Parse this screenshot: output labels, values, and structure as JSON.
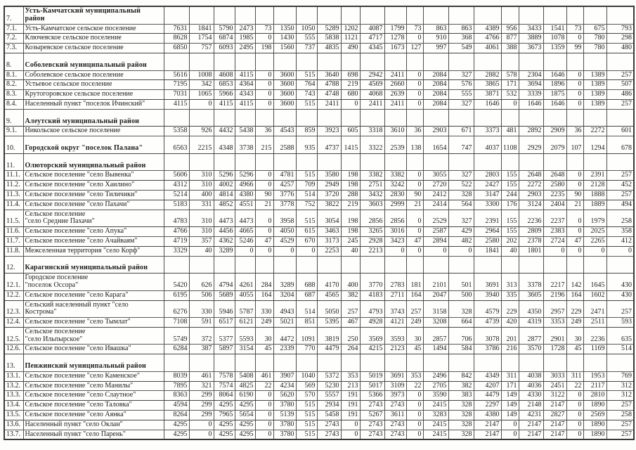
{
  "page": {
    "background": "#fdfdfb"
  },
  "table": {
    "columns": 21,
    "rows": [
      {
        "num": "7.",
        "name": "Усть-Камчатский  муниципальный\nрайон",
        "bold": true,
        "values": []
      },
      {
        "num": "7.1.",
        "name": "Усть-Камчатское сельское поселение",
        "bold": false,
        "values": [
          7631,
          1841,
          5790,
          2473,
          73,
          1350,
          1050,
          5289,
          1202,
          4087,
          1799,
          73,
          863,
          863,
          4389,
          956,
          3433,
          1541,
          73,
          675,
          793
        ]
      },
      {
        "num": "7.2.",
        "name": "Ключевское  сельское поселение",
        "bold": false,
        "values": [
          8628,
          1754,
          6874,
          1985,
          0,
          1430,
          555,
          5838,
          1121,
          4717,
          1278,
          0,
          910,
          368,
          4766,
          877,
          3889,
          1078,
          0,
          780,
          298
        ]
      },
      {
        "num": "7.3.",
        "name": "Козыревское  сельское поселение",
        "bold": false,
        "values": [
          6850,
          757,
          6093,
          2495,
          198,
          1560,
          737,
          4835,
          490,
          4345,
          1673,
          127,
          997,
          549,
          4061,
          388,
          3673,
          1359,
          99,
          780,
          480
        ]
      },
      {
        "num": "8.",
        "name": "\nСоболевский  муниципальный район",
        "bold": true,
        "values": []
      },
      {
        "num": "8.1.",
        "name": "Соболевское  сельское поселение",
        "bold": false,
        "values": [
          5616,
          1008,
          4608,
          4115,
          0,
          3600,
          515,
          3640,
          698,
          2942,
          2411,
          0,
          2084,
          327,
          2882,
          578,
          2304,
          1646,
          0,
          1389,
          257
        ]
      },
      {
        "num": "8.2.",
        "name": "Устьевое  сельское поселение",
        "bold": false,
        "values": [
          7195,
          342,
          6853,
          4364,
          0,
          3600,
          764,
          4788,
          219,
          4569,
          2660,
          0,
          2084,
          576,
          3865,
          171,
          3694,
          1896,
          0,
          1389,
          507
        ]
      },
      {
        "num": "8.3.",
        "name": "Крутогоровское  сельское поселение",
        "bold": false,
        "values": [
          7031,
          1065,
          5966,
          4343,
          0,
          3600,
          743,
          4748,
          680,
          4068,
          2639,
          0,
          2084,
          555,
          3871,
          532,
          3339,
          1875,
          0,
          1389,
          486
        ]
      },
      {
        "num": "8.4.",
        "name": "Населенный пункт \"поселок Ичинский\"",
        "bold": false,
        "values": [
          4115,
          0,
          4115,
          4115,
          0,
          3600,
          515,
          2411,
          0,
          2411,
          2411,
          0,
          2084,
          327,
          1646,
          0,
          1646,
          1646,
          0,
          1389,
          257
        ]
      },
      {
        "num": "9.",
        "name": "\nАлеутский муниципальный район",
        "bold": true,
        "values": []
      },
      {
        "num": "9.1.",
        "name": "Никольское  сельское поселение",
        "bold": false,
        "values": [
          5358,
          926,
          4432,
          5438,
          36,
          4543,
          859,
          3923,
          605,
          3318,
          3610,
          36,
          2903,
          671,
          3373,
          481,
          2892,
          2909,
          36,
          2272,
          601
        ]
      },
      {
        "num": "10.",
        "name": "\nГородской округ  \"поселок Палана\"",
        "bold": true,
        "values": [
          6563,
          2215,
          4348,
          3738,
          215,
          2588,
          935,
          4737,
          1415,
          3322,
          2539,
          138,
          1654,
          747,
          4037,
          1108,
          2929,
          2079,
          107,
          1294,
          678
        ]
      },
      {
        "num": "11.",
        "name": "\nОлюторский  муниципальный район",
        "bold": true,
        "values": []
      },
      {
        "num": "11.1.",
        "name": "Сельское поселение \"село Вывенка\"",
        "bold": false,
        "values": [
          5606,
          310,
          5296,
          5296,
          0,
          4781,
          515,
          3580,
          198,
          3382,
          3382,
          0,
          3055,
          327,
          2803,
          155,
          2648,
          2648,
          0,
          2391,
          257
        ]
      },
      {
        "num": "11.2.",
        "name": "Сельское поселение \"село Хаилино\"",
        "bold": false,
        "values": [
          4312,
          310,
          4002,
          4966,
          0,
          4257,
          709,
          2949,
          198,
          2751,
          3242,
          0,
          2720,
          522,
          2427,
          155,
          2272,
          2580,
          0,
          2128,
          452
        ]
      },
      {
        "num": "11.3.",
        "name": "Сельское поселение \"село Тиличики\"",
        "bold": false,
        "values": [
          5214,
          400,
          4814,
          4380,
          90,
          3776,
          514,
          3720,
          288,
          3432,
          2830,
          90,
          2412,
          328,
          3147,
          244,
          2903,
          2235,
          90,
          1888,
          257
        ]
      },
      {
        "num": "11.4.",
        "name": "Сельское поселение \"село Пахачи\"",
        "bold": false,
        "values": [
          5183,
          331,
          4852,
          4551,
          21,
          3778,
          752,
          3822,
          219,
          3603,
          2999,
          21,
          2414,
          564,
          3300,
          176,
          3124,
          2404,
          21,
          1889,
          494
        ]
      },
      {
        "num": "11.5.",
        "name": "Сельское поселение\n\"село Средние Пахачи\"",
        "bold": false,
        "values": [
          4783,
          310,
          4473,
          4473,
          0,
          3958,
          515,
          3054,
          198,
          2856,
          2856,
          0,
          2529,
          327,
          2391,
          155,
          2236,
          2237,
          0,
          1979,
          258
        ]
      },
      {
        "num": "11.6.",
        "name": "Сельское поселение \"село Апука\"",
        "bold": false,
        "values": [
          4766,
          310,
          4456,
          4665,
          0,
          4050,
          615,
          3463,
          198,
          3265,
          3016,
          0,
          2587,
          429,
          2964,
          155,
          2809,
          2383,
          0,
          2025,
          358
        ]
      },
      {
        "num": "11.7.",
        "name": "Сельское поселение \"село Ачайваям\"",
        "bold": false,
        "values": [
          4719,
          357,
          4362,
          5246,
          47,
          4529,
          670,
          3173,
          245,
          2928,
          3423,
          47,
          2894,
          482,
          2580,
          202,
          2378,
          2724,
          47,
          2265,
          412
        ]
      },
      {
        "num": "11.8.",
        "name": "Межселенная территория \"село Корф\"",
        "bold": false,
        "values": [
          3329,
          40,
          3289,
          0,
          0,
          0,
          0,
          2253,
          40,
          2213,
          0,
          0,
          0,
          0,
          1841,
          40,
          1801,
          0,
          0,
          0,
          0
        ]
      },
      {
        "num": "12.",
        "name": "\nКарагинский  муниципальный район",
        "bold": true,
        "values": []
      },
      {
        "num": "12.1.",
        "name": "Городское поселение\n\"поселок  Оссора\"",
        "bold": false,
        "values": [
          5420,
          626,
          4794,
          4261,
          284,
          3289,
          688,
          4170,
          400,
          3770,
          2783,
          181,
          2101,
          501,
          3691,
          313,
          3378,
          2217,
          142,
          1645,
          430
        ]
      },
      {
        "num": "12.2.",
        "name": "Сельское поселение \"село Карага\"",
        "bold": false,
        "values": [
          6195,
          506,
          5689,
          4055,
          164,
          3204,
          687,
          4565,
          382,
          4183,
          2711,
          164,
          2047,
          500,
          3940,
          335,
          3605,
          2196,
          164,
          1602,
          430
        ]
      },
      {
        "num": "12.3.",
        "name": "Сельский населенный пункт \"село\nКострома\"",
        "bold": false,
        "num_bottom": true,
        "values": [
          6276,
          330,
          5946,
          5787,
          330,
          4943,
          514,
          5050,
          257,
          4793,
          3743,
          257,
          3158,
          328,
          4579,
          229,
          4350,
          2957,
          229,
          2471,
          257
        ]
      },
      {
        "num": "12.4.",
        "name": "Сельское поселение \"село Тымлат\"",
        "bold": false,
        "values": [
          7108,
          591,
          6517,
          6121,
          249,
          5021,
          851,
          5395,
          467,
          4928,
          4121,
          249,
          3208,
          664,
          4739,
          420,
          4319,
          3353,
          249,
          2511,
          593
        ]
      },
      {
        "num": "12.5.",
        "name": "Сельское поселение\n\"село Ильпырское\"",
        "bold": false,
        "values": [
          5749,
          372,
          5377,
          5593,
          30,
          4472,
          1091,
          3819,
          250,
          3569,
          3593,
          30,
          2857,
          706,
          3078,
          201,
          2877,
          2901,
          30,
          2236,
          635
        ]
      },
      {
        "num": "12.6.",
        "name": "Сельское поселение \"село Ивашка\"",
        "bold": false,
        "values": [
          6284,
          387,
          5897,
          3154,
          45,
          2339,
          770,
          4479,
          264,
          4215,
          2123,
          45,
          1494,
          584,
          3786,
          216,
          3570,
          1728,
          45,
          1169,
          514
        ]
      },
      {
        "num": "13.",
        "name": "\nПенжинский  муниципальный район",
        "bold": true,
        "values": []
      },
      {
        "num": "13.1.",
        "name": "Сельское поселение \"село Каменское\"",
        "bold": false,
        "values": [
          8039,
          461,
          7578,
          5408,
          461,
          3907,
          1040,
          5372,
          353,
          5019,
          3691,
          353,
          2496,
          842,
          4349,
          311,
          4038,
          3033,
          311,
          1953,
          769
        ]
      },
      {
        "num": "13.2.",
        "name": "Сельское поселение \"село Манилы\"",
        "bold": false,
        "values": [
          7895,
          321,
          7574,
          4825,
          22,
          4234,
          569,
          5230,
          213,
          5017,
          3109,
          22,
          2705,
          382,
          4207,
          171,
          4036,
          2451,
          22,
          2117,
          312
        ]
      },
      {
        "num": "13.3.",
        "name": "Сельское поселение \"село Слаутное\"",
        "bold": false,
        "values": [
          8363,
          299,
          8064,
          6190,
          0,
          5620,
          570,
          5557,
          191,
          5366,
          3973,
          0,
          3590,
          383,
          4479,
          149,
          4330,
          3122,
          0,
          2810,
          312
        ]
      },
      {
        "num": "13.4.",
        "name": "Сельское поселение \"село Таловка\"",
        "bold": false,
        "values": [
          4594,
          299,
          4295,
          4295,
          0,
          3780,
          515,
          2934,
          191,
          2743,
          2743,
          0,
          2415,
          328,
          2297,
          149,
          2148,
          2147,
          0,
          1890,
          257
        ]
      },
      {
        "num": "13.5.",
        "name": "Сельское поселение \"село Аянка\"",
        "bold": false,
        "values": [
          8264,
          299,
          7965,
          5654,
          0,
          5139,
          515,
          5458,
          191,
          5267,
          3611,
          0,
          3283,
          328,
          4380,
          149,
          4231,
          2827,
          0,
          2569,
          258
        ]
      },
      {
        "num": "13.6.",
        "name": "Населенный пункт  \"село Оклан\"",
        "bold": false,
        "values": [
          4295,
          0,
          4295,
          4295,
          0,
          3780,
          515,
          2743,
          0,
          2743,
          2743,
          0,
          2415,
          328,
          2147,
          0,
          2147,
          2147,
          0,
          1890,
          257
        ]
      },
      {
        "num": "13.7.",
        "name": "Населенный пункт  \"село Парень\"",
        "bold": false,
        "values": [
          4295,
          0,
          4295,
          4295,
          0,
          3780,
          515,
          2743,
          0,
          2743,
          2743,
          0,
          2415,
          328,
          2147,
          0,
          2147,
          2147,
          0,
          1890,
          257
        ]
      }
    ]
  }
}
